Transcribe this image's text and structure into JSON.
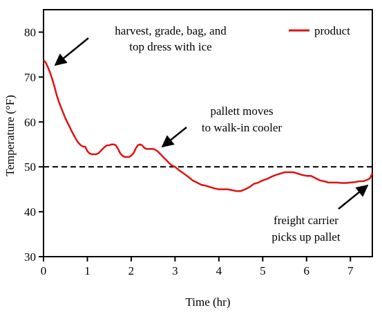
{
  "chart_data": {
    "type": "line",
    "xlabel": "Time (hr)",
    "ylabel": "Temperature (°F)",
    "xlim": [
      0,
      7.5
    ],
    "ylim": [
      30,
      85
    ],
    "xticks": [
      0,
      1,
      2,
      3,
      4,
      5,
      6,
      7
    ],
    "yticks": [
      30,
      40,
      50,
      60,
      70,
      80
    ],
    "grid": false,
    "legend_position": "top-right",
    "reference_line": {
      "y": 50,
      "style": "dashed",
      "color": "#000000"
    },
    "series": [
      {
        "name": "product",
        "color": "#e01010",
        "x": [
          0,
          0.05,
          0.1,
          0.15,
          0.2,
          0.25,
          0.3,
          0.35,
          0.4,
          0.45,
          0.5,
          0.55,
          0.6,
          0.65,
          0.7,
          0.75,
          0.8,
          0.85,
          0.9,
          0.95,
          1.0,
          1.05,
          1.1,
          1.15,
          1.2,
          1.25,
          1.3,
          1.35,
          1.4,
          1.45,
          1.5,
          1.55,
          1.6,
          1.65,
          1.7,
          1.75,
          1.8,
          1.85,
          1.9,
          1.95,
          2.0,
          2.05,
          2.1,
          2.15,
          2.2,
          2.25,
          2.3,
          2.35,
          2.4,
          2.45,
          2.5,
          2.55,
          2.6,
          2.65,
          2.7,
          2.75,
          2.8,
          2.85,
          2.9,
          2.95,
          3.0,
          3.1,
          3.2,
          3.3,
          3.4,
          3.5,
          3.6,
          3.7,
          3.8,
          3.9,
          4.0,
          4.1,
          4.2,
          4.3,
          4.4,
          4.5,
          4.6,
          4.7,
          4.8,
          4.9,
          5.0,
          5.1,
          5.2,
          5.3,
          5.4,
          5.5,
          5.6,
          5.7,
          5.8,
          5.9,
          6.0,
          6.1,
          6.2,
          6.3,
          6.4,
          6.5,
          6.6,
          6.7,
          6.8,
          6.9,
          7.0,
          7.1,
          7.2,
          7.3,
          7.4,
          7.45,
          7.5
        ],
        "y": [
          73.8,
          73.2,
          72.2,
          71.0,
          69.5,
          67.8,
          66.0,
          64.5,
          63.2,
          62.0,
          60.8,
          59.8,
          58.8,
          57.8,
          56.9,
          56.0,
          55.3,
          54.8,
          54.5,
          54.5,
          53.5,
          53.0,
          52.8,
          52.8,
          52.8,
          53.0,
          53.5,
          54.0,
          54.5,
          54.8,
          54.8,
          55.0,
          55.0,
          54.8,
          54.0,
          53.0,
          52.5,
          52.2,
          52.2,
          52.2,
          52.5,
          53.0,
          54.0,
          54.8,
          55.0,
          54.8,
          54.2,
          54.0,
          54.0,
          54.0,
          54.0,
          53.8,
          53.5,
          53.0,
          52.5,
          52.0,
          51.5,
          51.0,
          50.5,
          50.2,
          50.0,
          49.2,
          48.5,
          47.8,
          47.0,
          46.5,
          46.0,
          45.8,
          45.5,
          45.2,
          45.0,
          45.0,
          45.0,
          44.8,
          44.6,
          44.6,
          45.0,
          45.5,
          46.2,
          46.5,
          47.0,
          47.3,
          47.8,
          48.2,
          48.5,
          48.8,
          48.8,
          48.8,
          48.5,
          48.2,
          48.0,
          48.0,
          47.5,
          47.0,
          46.8,
          46.5,
          46.5,
          46.5,
          46.4,
          46.4,
          46.5,
          46.6,
          46.8,
          46.8,
          47.2,
          47.5,
          48.6
        ]
      }
    ],
    "annotations": [
      {
        "lines": [
          "harvest, grade, bag, and",
          "top dress with ice"
        ]
      },
      {
        "lines": [
          "pallett moves",
          "to walk-in cooler"
        ]
      },
      {
        "lines": [
          "freight carrier",
          "picks up pallet"
        ]
      }
    ]
  }
}
